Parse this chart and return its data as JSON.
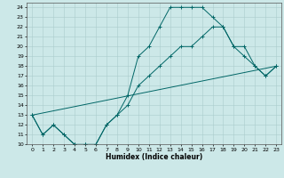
{
  "xlabel": "Humidex (Indice chaleur)",
  "bg_color": "#cce8e8",
  "grid_color": "#aacccc",
  "line_color": "#006666",
  "marker": "+",
  "xlim": [
    -0.5,
    23.5
  ],
  "ylim": [
    10,
    24.5
  ],
  "yticks": [
    10,
    11,
    12,
    13,
    14,
    15,
    16,
    17,
    18,
    19,
    20,
    21,
    22,
    23,
    24
  ],
  "xticks": [
    0,
    1,
    2,
    3,
    4,
    5,
    6,
    7,
    8,
    9,
    10,
    11,
    12,
    13,
    14,
    15,
    16,
    17,
    18,
    19,
    20,
    21,
    22,
    23
  ],
  "lines": [
    {
      "x": [
        0,
        1,
        2,
        3,
        4,
        5,
        6,
        7,
        8,
        9,
        10,
        11,
        12,
        13,
        14,
        15,
        16,
        17,
        18,
        19,
        20,
        21,
        22,
        23
      ],
      "y": [
        13,
        11,
        12,
        11,
        10,
        10,
        10,
        12,
        13,
        15,
        19,
        20,
        22,
        24,
        24,
        24,
        24,
        23,
        22,
        20,
        19,
        18,
        17,
        18
      ],
      "has_marker": true
    },
    {
      "x": [
        0,
        1,
        2,
        3,
        4,
        5,
        6,
        7,
        8,
        9,
        10,
        11,
        12,
        13,
        14,
        15,
        16,
        17,
        18,
        19,
        20,
        21,
        22,
        23
      ],
      "y": [
        13,
        11,
        12,
        11,
        10,
        10,
        10,
        12,
        13,
        14,
        16,
        17,
        18,
        19,
        20,
        20,
        21,
        22,
        22,
        20,
        20,
        18,
        17,
        18
      ],
      "has_marker": true
    },
    {
      "x": [
        0,
        23
      ],
      "y": [
        13,
        18
      ],
      "has_marker": false
    }
  ]
}
